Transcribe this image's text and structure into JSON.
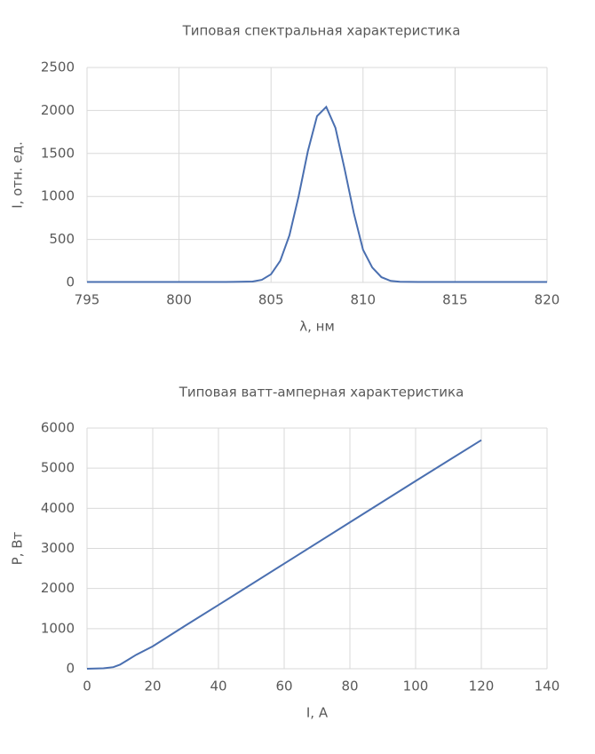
{
  "chart_data": [
    {
      "type": "line",
      "title": "Типовая спектральная характеристика",
      "xlabel": "λ, нм",
      "ylabel": "I, отн. ед.",
      "x": [
        795,
        796,
        797,
        798,
        799,
        800,
        801,
        802,
        803,
        804,
        804.5,
        805,
        805.5,
        806,
        806.5,
        807,
        807.5,
        808,
        808.5,
        809,
        809.5,
        810,
        810.5,
        811,
        811.5,
        812,
        813,
        814,
        815,
        816,
        817,
        818,
        819,
        820
      ],
      "values": [
        5,
        5,
        5,
        5,
        5,
        5,
        5,
        5,
        6,
        10,
        30,
        95,
        251,
        548,
        1002,
        1525,
        1934,
        2042,
        1798,
        1318,
        805,
        380,
        174,
        61,
        18,
        8,
        5,
        5,
        5,
        5,
        5,
        5,
        5,
        5
      ],
      "color": "#4a6fb0",
      "xlim": [
        795,
        820
      ],
      "xticks": [
        795,
        800,
        805,
        810,
        815,
        820
      ],
      "ylim": [
        0,
        2500
      ],
      "yticks": [
        0,
        500,
        1000,
        1500,
        2000,
        2500
      ],
      "grid": true
    },
    {
      "type": "line",
      "title": "Типовая ватт-амперная характеристика",
      "xlabel": "I, A",
      "ylabel": "P, Вт",
      "x": [
        0,
        5,
        8,
        10,
        12,
        15,
        20,
        30,
        40,
        60,
        80,
        100,
        120
      ],
      "values": [
        0,
        10,
        40,
        100,
        200,
        350,
        560,
        1080,
        1590,
        2620,
        3650,
        4680,
        5700
      ],
      "color": "#4a6fb0",
      "xlim": [
        0,
        140
      ],
      "xticks": [
        0,
        20,
        40,
        60,
        80,
        100,
        120,
        140
      ],
      "ylim": [
        0,
        6000
      ],
      "yticks": [
        0,
        1000,
        2000,
        3000,
        4000,
        5000,
        6000
      ],
      "grid": true
    }
  ]
}
